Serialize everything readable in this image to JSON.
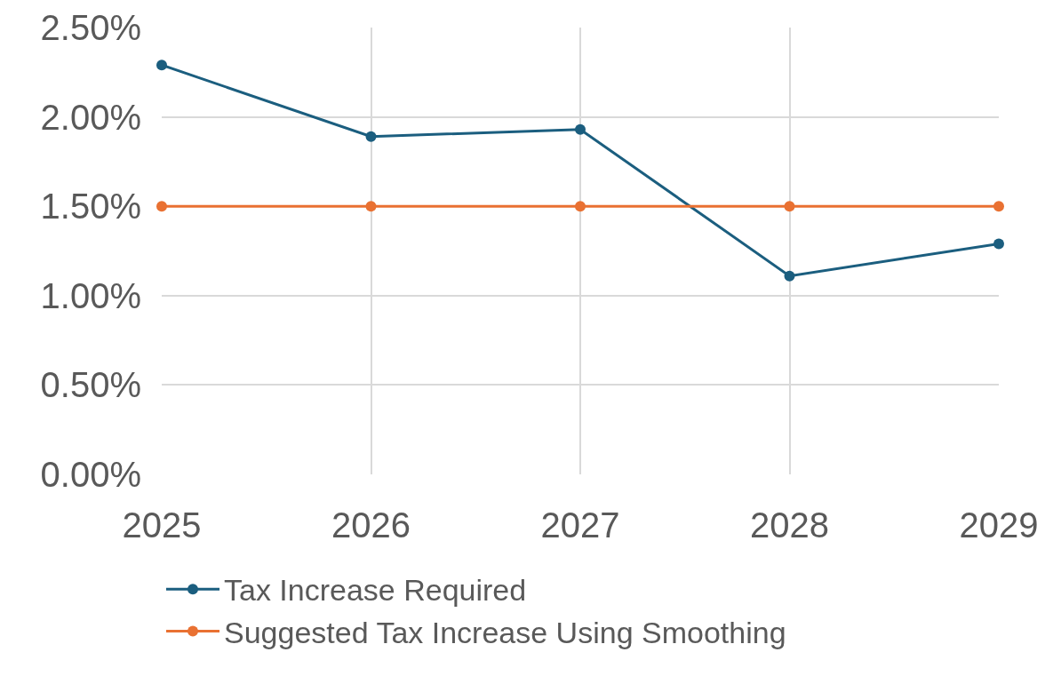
{
  "chart_data": {
    "type": "line",
    "categories": [
      "2025",
      "2026",
      "2027",
      "2028",
      "2029"
    ],
    "series": [
      {
        "name": "Tax Increase Required",
        "color": "#1b5e7f",
        "values": [
          2.29,
          1.89,
          1.93,
          1.11,
          1.29
        ]
      },
      {
        "name": "Suggested Tax Increase Using Smoothing",
        "color": "#e97132",
        "values": [
          1.5,
          1.5,
          1.5,
          1.5,
          1.5
        ]
      }
    ],
    "ylim": [
      0,
      2.5
    ],
    "yticks": [
      {
        "value": 0,
        "label": "0.00%"
      },
      {
        "value": 0.5,
        "label": "0.50%"
      },
      {
        "value": 1,
        "label": "1.00%"
      },
      {
        "value": 1.5,
        "label": "1.50%"
      },
      {
        "value": 2,
        "label": "2.00%"
      },
      {
        "value": 2.5,
        "label": "2.50%"
      }
    ],
    "grid": true,
    "legend": "bottom",
    "marker": "circle",
    "line_style": "solid"
  }
}
